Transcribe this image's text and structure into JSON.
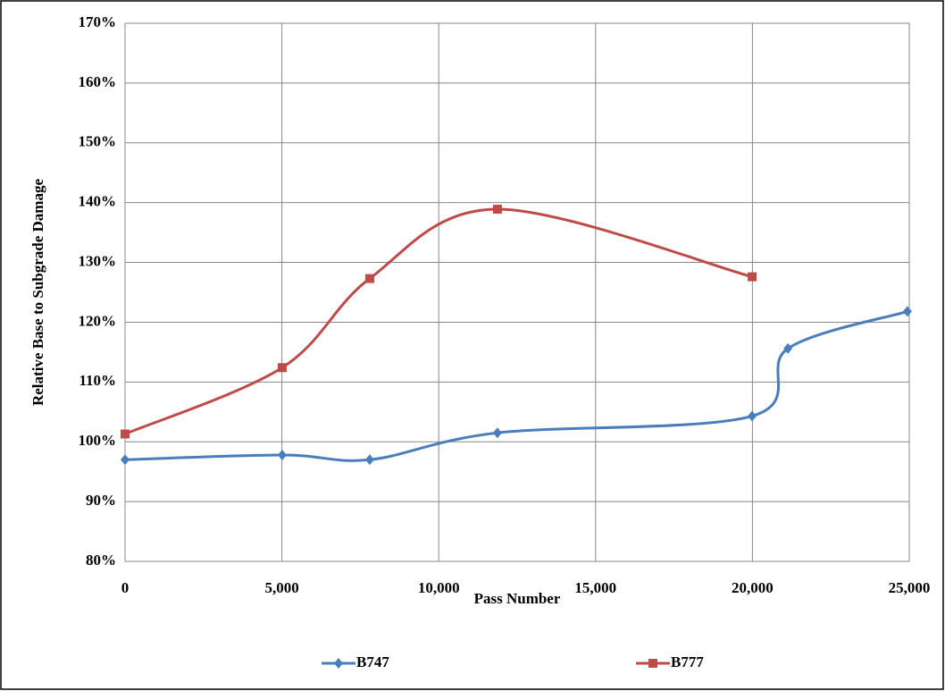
{
  "chart_data": {
    "type": "line",
    "x_label": "Pass Number",
    "y_label": "Relative Base to Subgrade Damage",
    "xlim": [
      0,
      25000
    ],
    "xticks": [
      0,
      {
        "value": 5000,
        "label": "5,000"
      },
      {
        "value": 10000,
        "label": "10,000"
      },
      {
        "value": 15000,
        "label": "15,000"
      },
      {
        "value": 20000,
        "label": "20,000"
      },
      {
        "value": 25000,
        "label": "25,000"
      }
    ],
    "ylim": [
      80,
      170
    ],
    "yticks": [
      {
        "value": 80,
        "label": "80%"
      },
      {
        "value": 90,
        "label": "90%"
      },
      {
        "value": 100,
        "label": "100%"
      },
      {
        "value": 110,
        "label": "110%"
      },
      {
        "value": 120,
        "label": "120%"
      },
      {
        "value": 130,
        "label": "130%"
      },
      {
        "value": 140,
        "label": "140%"
      },
      {
        "value": 150,
        "label": "150%"
      },
      {
        "value": 160,
        "label": "160%"
      },
      {
        "value": 170,
        "label": "170%"
      }
    ],
    "grid": true,
    "legend": "bottom",
    "series": [
      {
        "name": "B747",
        "color": "#4a7ebb",
        "marker": "diamond",
        "x": [
          0,
          5010,
          7800,
          11870,
          19990,
          21130,
          24940
        ],
        "values": [
          97.0,
          97.8,
          97.0,
          101.5,
          104.3,
          115.6,
          121.8
        ]
      },
      {
        "name": "B777",
        "color": "#be4b48",
        "marker": "square",
        "x": [
          0,
          5010,
          7800,
          11870,
          19990
        ],
        "values": [
          101.3,
          112.4,
          127.3,
          138.9,
          127.6
        ]
      }
    ]
  }
}
